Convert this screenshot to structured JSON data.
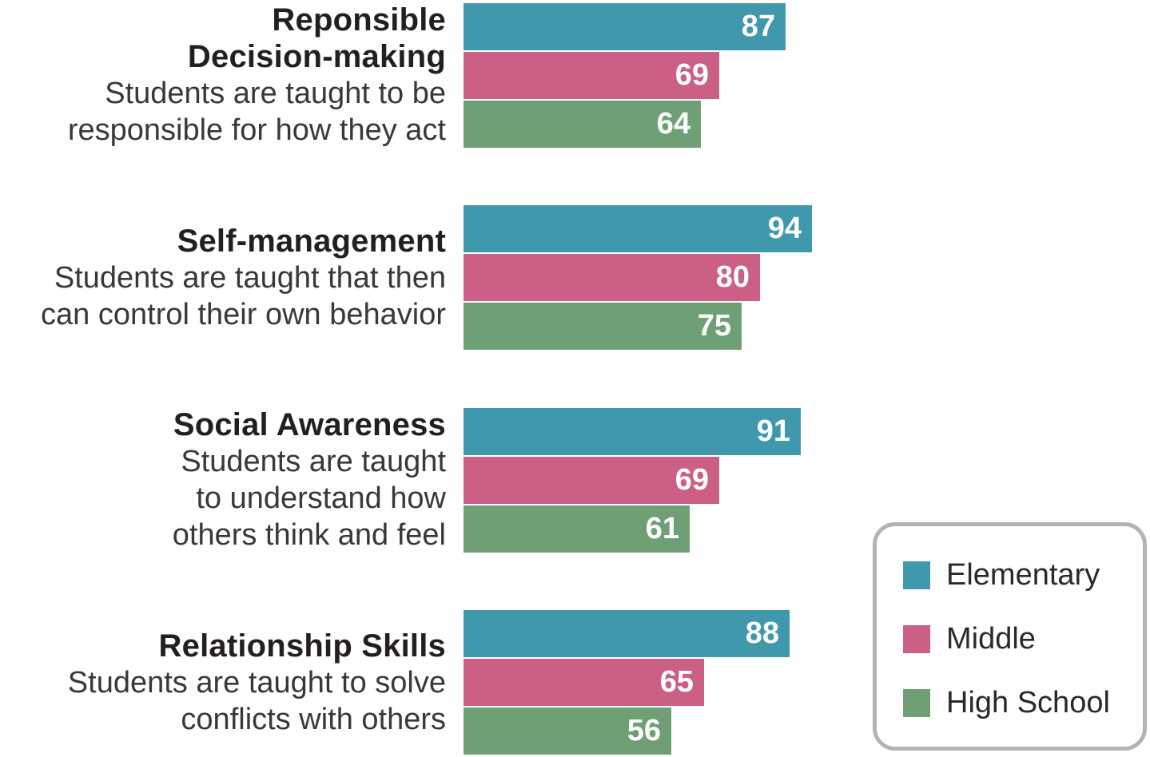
{
  "chart_data": {
    "type": "bar",
    "orientation": "horizontal",
    "value_axis": {
      "min": 0,
      "max": 100,
      "visible": false
    },
    "grid": false,
    "series": [
      {
        "name": "Elementary",
        "color": "#4098AC"
      },
      {
        "name": "Middle",
        "color": "#CB5F85"
      },
      {
        "name": "High School",
        "color": "#6FA075"
      }
    ],
    "groups": [
      {
        "title_lines": [
          "Reponsible",
          "Decision-making"
        ],
        "subtitle_lines": [
          "Students are taught to be",
          "responsible for how they act"
        ],
        "values": [
          87,
          69,
          64
        ]
      },
      {
        "title_lines": [
          "Self-management"
        ],
        "subtitle_lines": [
          "Students are taught that then",
          "can control their own behavior"
        ],
        "values": [
          94,
          80,
          75
        ]
      },
      {
        "title_lines": [
          "Social Awareness"
        ],
        "subtitle_lines": [
          "Students are taught",
          "to understand how",
          "others think and feel"
        ],
        "values": [
          91,
          69,
          61
        ]
      },
      {
        "title_lines": [
          "Relationship Skills"
        ],
        "subtitle_lines": [
          "Students are taught to solve",
          "conflicts with others"
        ],
        "values": [
          88,
          65,
          56
        ]
      }
    ],
    "value_labels_inside_bars": true,
    "legend": {
      "position": "bottom-right",
      "entries": [
        "Elementary",
        "Middle",
        "High School"
      ]
    },
    "colors": {
      "category_title_text": "#231F20",
      "category_subtitle_text": "#3B3738",
      "value_label_text": "#FFFFFF",
      "legend_border": "#B1B3B5",
      "legend_text": "#2B2829",
      "background": "#FFFFFF"
    }
  }
}
